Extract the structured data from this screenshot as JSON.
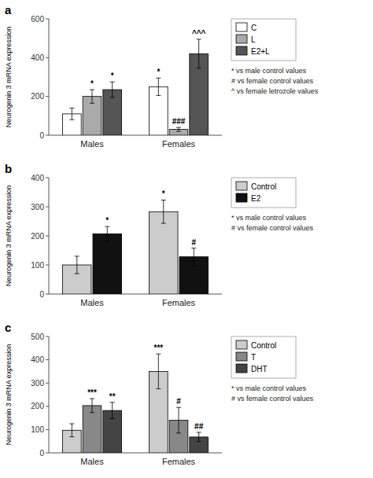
{
  "chart_data": [
    {
      "type": "bar",
      "title": "a",
      "ylabel": "Neurogenin 3 mRNA expression",
      "categories": [
        "Males",
        "Females"
      ],
      "series": [
        {
          "name": "C",
          "color": "white",
          "values": [
            110,
            250
          ],
          "errors": [
            30,
            45
          ],
          "annotations": [
            null,
            "*"
          ]
        },
        {
          "name": "L",
          "color": "#aaaaaa",
          "values": [
            200,
            30
          ],
          "errors": [
            35,
            10
          ],
          "annotations": [
            "*",
            "###"
          ]
        },
        {
          "name": "E2+L",
          "color": "#555555",
          "values": [
            235,
            420
          ],
          "errors": [
            40,
            75
          ],
          "annotations": [
            "*",
            "^^^"
          ]
        }
      ],
      "ylim": [
        0,
        600
      ],
      "yticks": [
        0,
        200,
        400,
        600
      ],
      "grid": false,
      "legend": "right",
      "annotations": [
        "* vs male control values",
        "# vs female control values",
        "^ vs female letrozole values"
      ]
    },
    {
      "type": "bar",
      "title": "b",
      "ylabel": "Neurogenin 3 mRNA expression",
      "categories": [
        "Males",
        "Females"
      ],
      "series": [
        {
          "name": "Control",
          "color": "#cccccc",
          "values": [
            100,
            283
          ],
          "errors": [
            30,
            40
          ],
          "annotations": [
            null,
            "*"
          ]
        },
        {
          "name": "E2",
          "color": "#111111",
          "values": [
            207,
            128
          ],
          "errors": [
            25,
            30
          ],
          "annotations": [
            "*",
            "#"
          ]
        }
      ],
      "ylim": [
        0,
        400
      ],
      "yticks": [
        0,
        100,
        200,
        300,
        400
      ],
      "grid": false,
      "legend": "right",
      "annotations": [
        "* vs male control values",
        "# vs female control values"
      ]
    },
    {
      "type": "bar",
      "title": "c",
      "ylabel": "Neurogenin 3 mRNA expression",
      "categories": [
        "Males",
        "Females"
      ],
      "series": [
        {
          "name": "Control",
          "color": "#cccccc",
          "values": [
            97,
            350
          ],
          "errors": [
            28,
            75
          ],
          "annotations": [
            null,
            "***"
          ]
        },
        {
          "name": "T",
          "color": "#888888",
          "values": [
            203,
            140
          ],
          "errors": [
            30,
            55
          ],
          "annotations": [
            "***",
            "#"
          ]
        },
        {
          "name": "DHT",
          "color": "#444444",
          "values": [
            182,
            68
          ],
          "errors": [
            35,
            20
          ],
          "annotations": [
            "**",
            "##"
          ]
        }
      ],
      "ylim": [
        0,
        500
      ],
      "yticks": [
        0,
        100,
        200,
        300,
        400,
        500
      ],
      "grid": false,
      "legend": "right",
      "annotations": [
        "* vs male control values",
        "# vs female control values"
      ]
    }
  ]
}
